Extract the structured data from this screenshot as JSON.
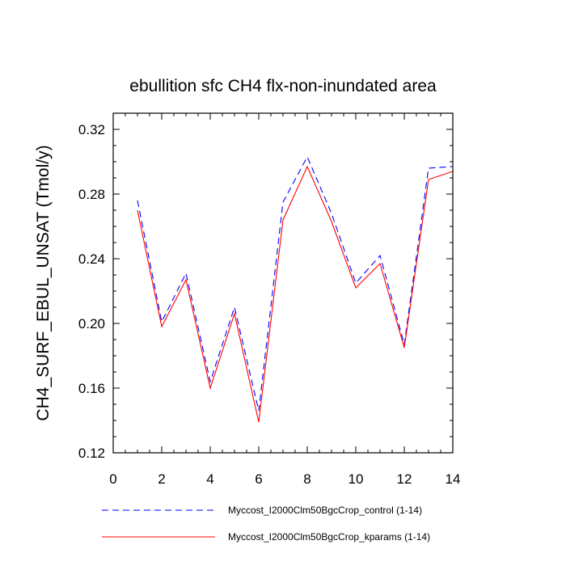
{
  "chart_data": {
    "type": "line",
    "title": "ebullition sfc CH4 flx-non-inundated area",
    "xlabel": "",
    "ylabel": "CH4_SURF_EBUL_UNSAT  (Tmol/y)",
    "xlim": [
      0,
      14
    ],
    "ylim": [
      0.12,
      0.33
    ],
    "x_ticks": [
      "0",
      "2",
      "4",
      "6",
      "8",
      "10",
      "12",
      "14"
    ],
    "y_ticks": [
      "0.12",
      "0.16",
      "0.20",
      "0.24",
      "0.28",
      "0.32"
    ],
    "grid": false,
    "legend_position": "bottom",
    "x": [
      1,
      2,
      3,
      4,
      5,
      6,
      7,
      8,
      9,
      10,
      11,
      12,
      13,
      14
    ],
    "series": [
      {
        "name": "Myccost_I2000Clm50BgcCrop_control (1-14)",
        "color": "#0000ff",
        "dash": "dashed",
        "values": [
          0.276,
          0.201,
          0.231,
          0.164,
          0.21,
          0.146,
          0.275,
          0.303,
          0.268,
          0.225,
          0.242,
          0.187,
          0.296,
          0.297
        ]
      },
      {
        "name": "Myccost_I2000Clm50BgcCrop_kparams (1-14)",
        "color": "#ff0000",
        "dash": "solid",
        "values": [
          0.27,
          0.198,
          0.227,
          0.16,
          0.206,
          0.139,
          0.264,
          0.297,
          0.263,
          0.222,
          0.237,
          0.185,
          0.289,
          0.294
        ]
      }
    ]
  }
}
